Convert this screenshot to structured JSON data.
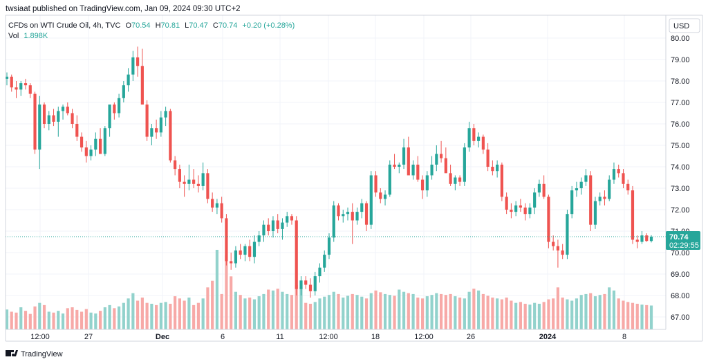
{
  "header": {
    "publisher": "twsiaat published on TradingView.com, Jan 09, 2024 09:30 UTC+2"
  },
  "legend": {
    "symbol": "CFDs on WTI Crude Oil, 4h, TVC",
    "o_label": "O",
    "o_value": "70.54",
    "h_label": "H",
    "h_value": "70.81",
    "l_label": "L",
    "l_value": "70.47",
    "c_label": "C",
    "c_value": "70.74",
    "change": "+0.20 (+0.28%)",
    "vol_label": "Vol",
    "vol_value": "1.898K"
  },
  "currency_button": "USD",
  "price_tag": {
    "price": "70.74",
    "countdown": "02:29:55"
  },
  "footer": {
    "brand": "TradingView"
  },
  "colors": {
    "up": "#26a69a",
    "down": "#ef5350",
    "up_volume": "#92d2cc",
    "down_volume": "#f7a9a7",
    "grid": "#f0f3fa",
    "axis_text": "#131722",
    "last_price_line": "#26a69a"
  },
  "chart_data": {
    "type": "candlestick",
    "symbol": "CFDs on WTI Crude Oil",
    "interval": "4h",
    "yaxis": {
      "ticks": [
        "80.00",
        "79.00",
        "78.00",
        "77.00",
        "76.00",
        "75.00",
        "74.00",
        "73.00",
        "72.00",
        "71.00",
        "70.00",
        "69.00",
        "68.00",
        "67.00"
      ],
      "range": [
        66.5,
        80.5
      ]
    },
    "xaxis": {
      "ticks": [
        "12:00",
        "27",
        "Dec",
        "6",
        "11",
        "12:00",
        "18",
        "12:00",
        "26",
        "2024",
        "8"
      ],
      "bold_ticks": [
        "Dec",
        "2024"
      ]
    },
    "last_price": 70.74,
    "grid": true,
    "ohlc_sample": [
      [
        78.1,
        78.4,
        77.8,
        78.2
      ],
      [
        78.2,
        78.3,
        77.5,
        77.7
      ],
      [
        77.7,
        78.0,
        77.2,
        77.6
      ],
      [
        77.6,
        78.0,
        77.3,
        77.9
      ],
      [
        77.9,
        78.1,
        77.6,
        77.8
      ],
      [
        77.8,
        77.9,
        77.2,
        77.4
      ],
      [
        77.4,
        77.5,
        74.6,
        74.8
      ],
      [
        74.8,
        77.3,
        73.9,
        76.9
      ],
      [
        76.9,
        77.0,
        75.8,
        76.0
      ],
      [
        76.0,
        76.6,
        75.7,
        76.4
      ],
      [
        76.4,
        76.7,
        75.9,
        76.1
      ],
      [
        76.1,
        76.8,
        75.4,
        76.6
      ],
      [
        76.6,
        76.9,
        76.2,
        76.8
      ],
      [
        76.8,
        77.0,
        76.4,
        76.5
      ],
      [
        76.5,
        76.7,
        75.8,
        76.0
      ],
      [
        76.0,
        76.4,
        75.2,
        75.4
      ],
      [
        75.4,
        75.6,
        74.7,
        74.9
      ],
      [
        74.9,
        75.2,
        74.2,
        74.5
      ],
      [
        74.5,
        75.0,
        74.3,
        74.8
      ],
      [
        74.8,
        75.6,
        74.5,
        75.3
      ],
      [
        75.3,
        75.8,
        74.8,
        74.6
      ],
      [
        74.6,
        75.9,
        74.5,
        75.8
      ],
      [
        75.8,
        76.5,
        75.4,
        76.9
      ],
      [
        76.9,
        77.0,
        76.2,
        76.5
      ],
      [
        76.5,
        77.4,
        76.3,
        77.2
      ],
      [
        77.2,
        78.0,
        77.0,
        77.8
      ],
      [
        77.8,
        78.6,
        77.5,
        78.3
      ],
      [
        78.3,
        79.4,
        78.0,
        79.1
      ],
      [
        79.1,
        79.6,
        78.2,
        78.7
      ],
      [
        78.7,
        79.5,
        76.9,
        76.9
      ],
      [
        76.9,
        77.1,
        75.2,
        75.4
      ],
      [
        75.4,
        76.0,
        75.0,
        75.8
      ],
      [
        75.8,
        76.2,
        75.3,
        75.6
      ],
      [
        75.6,
        76.6,
        75.4,
        76.3
      ],
      [
        76.3,
        76.8,
        75.9,
        76.6
      ],
      [
        76.6,
        76.7,
        74.2,
        74.3
      ],
      [
        74.3,
        74.5,
        73.6,
        73.9
      ],
      [
        73.9,
        74.1,
        73.0,
        73.3
      ],
      [
        73.3,
        73.6,
        72.6,
        73.2
      ],
      [
        73.2,
        74.1,
        72.9,
        73.4
      ],
      [
        73.4,
        73.9,
        73.0,
        73.2
      ],
      [
        73.2,
        73.6,
        72.8,
        73.1
      ],
      [
        73.1,
        74.2,
        72.9,
        73.7
      ],
      [
        73.7,
        73.9,
        72.3,
        72.5
      ],
      [
        72.5,
        72.8,
        71.9,
        72.1
      ],
      [
        72.1,
        72.5,
        71.8,
        72.3
      ],
      [
        72.3,
        72.6,
        71.4,
        71.6
      ],
      [
        71.6,
        71.8,
        69.4,
        69.6
      ],
      [
        69.6,
        70.0,
        69.2,
        69.5
      ],
      [
        69.5,
        70.3,
        69.3,
        70.1
      ],
      [
        70.1,
        70.4,
        69.7,
        69.9
      ],
      [
        69.9,
        70.4,
        69.6,
        70.3
      ],
      [
        70.3,
        70.6,
        69.6,
        69.8
      ],
      [
        69.8,
        70.8,
        69.5,
        70.5
      ],
      [
        70.5,
        71.0,
        70.3,
        70.8
      ],
      [
        70.8,
        71.5,
        70.5,
        71.3
      ],
      [
        71.3,
        71.6,
        70.8,
        71.0
      ],
      [
        71.0,
        71.7,
        70.7,
        71.5
      ],
      [
        71.5,
        71.8,
        70.9,
        71.1
      ],
      [
        71.1,
        71.6,
        70.6,
        71.4
      ],
      [
        71.4,
        71.9,
        71.2,
        71.7
      ],
      [
        71.7,
        71.8,
        71.3,
        71.5
      ],
      [
        71.5,
        71.7,
        68.0,
        68.3
      ],
      [
        68.3,
        68.9,
        68.0,
        68.7
      ],
      [
        68.7,
        68.9,
        68.3,
        68.5
      ],
      [
        68.5,
        68.8,
        67.9,
        68.2
      ],
      [
        68.2,
        69.1,
        68.0,
        68.9
      ],
      [
        68.9,
        69.5,
        68.6,
        69.3
      ],
      [
        69.3,
        70.1,
        69.1,
        69.9
      ],
      [
        69.9,
        70.9,
        69.7,
        70.7
      ],
      [
        70.7,
        72.4,
        70.5,
        72.2
      ],
      [
        72.2,
        72.3,
        71.5,
        71.7
      ],
      [
        71.7,
        72.0,
        71.4,
        71.8
      ],
      [
        71.8,
        72.1,
        71.5,
        71.9
      ],
      [
        71.9,
        72.3,
        70.4,
        71.5
      ],
      [
        71.5,
        72.1,
        71.3,
        71.9
      ],
      [
        71.9,
        72.5,
        71.6,
        72.3
      ],
      [
        72.3,
        72.4,
        71.0,
        71.3
      ],
      [
        71.3,
        73.8,
        71.1,
        73.6
      ],
      [
        73.6,
        73.8,
        72.6,
        72.8
      ],
      [
        72.8,
        73.0,
        72.3,
        72.5
      ],
      [
        72.5,
        72.9,
        72.2,
        72.7
      ],
      [
        72.7,
        74.3,
        72.6,
        74.1
      ],
      [
        74.1,
        74.6,
        73.9,
        74.0
      ],
      [
        74.0,
        74.2,
        73.7,
        74.1
      ],
      [
        74.1,
        75.3,
        73.9,
        74.9
      ],
      [
        74.9,
        75.4,
        74.3,
        73.6
      ],
      [
        73.6,
        74.3,
        73.4,
        74.1
      ],
      [
        74.1,
        74.5,
        73.3,
        73.4
      ],
      [
        73.4,
        73.6,
        72.5,
        72.9
      ],
      [
        72.9,
        73.8,
        72.6,
        73.6
      ],
      [
        73.6,
        74.5,
        73.4,
        74.1
      ],
      [
        74.1,
        75.0,
        73.8,
        74.6
      ],
      [
        74.6,
        75.2,
        74.2,
        74.4
      ],
      [
        74.4,
        74.9,
        73.9,
        73.7
      ],
      [
        73.7,
        74.1,
        73.1,
        73.2
      ],
      [
        73.2,
        73.6,
        72.9,
        73.5
      ],
      [
        73.5,
        73.6,
        73.1,
        73.3
      ],
      [
        73.3,
        75.1,
        73.1,
        74.9
      ],
      [
        74.9,
        76.1,
        74.7,
        75.8
      ],
      [
        75.8,
        76.0,
        75.0,
        75.2
      ],
      [
        75.2,
        75.6,
        74.9,
        75.4
      ],
      [
        75.4,
        75.5,
        74.6,
        74.8
      ],
      [
        74.8,
        75.1,
        73.8,
        74.0
      ],
      [
        74.0,
        74.3,
        73.6,
        73.8
      ],
      [
        73.8,
        74.3,
        73.5,
        74.1
      ],
      [
        74.1,
        74.2,
        72.4,
        72.6
      ],
      [
        72.6,
        72.8,
        71.8,
        72.0
      ],
      [
        72.0,
        72.3,
        71.6,
        71.9
      ],
      [
        71.9,
        72.4,
        71.7,
        72.2
      ],
      [
        72.2,
        72.5,
        71.9,
        72.1
      ],
      [
        72.1,
        72.3,
        71.5,
        71.8
      ],
      [
        71.8,
        72.3,
        71.6,
        72.1
      ],
      [
        72.1,
        73.0,
        71.8,
        72.8
      ],
      [
        72.8,
        73.4,
        72.6,
        73.2
      ],
      [
        73.2,
        73.6,
        72.5,
        72.6
      ],
      [
        72.6,
        72.7,
        70.2,
        70.5
      ],
      [
        70.5,
        70.8,
        70.1,
        70.3
      ],
      [
        70.3,
        70.6,
        69.3,
        70.1
      ],
      [
        70.1,
        70.4,
        69.7,
        69.9
      ],
      [
        69.9,
        72.0,
        69.7,
        71.8
      ],
      [
        71.8,
        73.1,
        71.6,
        72.9
      ],
      [
        72.9,
        73.3,
        72.6,
        73.0
      ],
      [
        73.0,
        73.5,
        72.7,
        73.3
      ],
      [
        73.3,
        73.9,
        73.1,
        73.6
      ],
      [
        73.6,
        73.8,
        71.0,
        71.3
      ],
      [
        71.3,
        72.6,
        71.1,
        72.4
      ],
      [
        72.4,
        72.8,
        72.2,
        72.6
      ],
      [
        72.6,
        72.9,
        72.2,
        72.5
      ],
      [
        72.5,
        73.6,
        72.4,
        73.4
      ],
      [
        73.4,
        74.2,
        73.2,
        73.9
      ],
      [
        73.9,
        74.1,
        73.5,
        73.7
      ],
      [
        73.7,
        73.9,
        73.0,
        73.2
      ],
      [
        73.2,
        73.4,
        72.7,
        72.9
      ],
      [
        72.9,
        73.1,
        70.4,
        70.6
      ],
      [
        70.6,
        70.8,
        70.2,
        70.5
      ],
      [
        70.5,
        71.0,
        70.4,
        70.8
      ],
      [
        70.8,
        70.9,
        70.5,
        70.54
      ],
      [
        70.54,
        70.81,
        70.47,
        70.74
      ]
    ],
    "volume_sample": [
      45,
      40,
      38,
      50,
      42,
      35,
      52,
      60,
      55,
      40,
      38,
      42,
      36,
      48,
      50,
      44,
      40,
      46,
      38,
      36,
      42,
      50,
      55,
      48,
      52,
      60,
      70,
      82,
      65,
      72,
      60,
      58,
      55,
      60,
      62,
      58,
      75,
      70,
      65,
      72,
      55,
      60,
      70,
      95,
      110,
      180,
      80,
      168,
      120,
      85,
      78,
      70,
      72,
      68,
      75,
      80,
      90,
      88,
      92,
      85,
      80,
      78,
      100,
      95,
      60,
      58,
      62,
      70,
      74,
      78,
      85,
      80,
      72,
      76,
      80,
      78,
      74,
      70,
      82,
      88,
      84,
      80,
      78,
      76,
      90,
      85,
      82,
      80,
      72,
      70,
      75,
      78,
      82,
      80,
      78,
      80,
      75,
      72,
      70,
      85,
      92,
      88,
      80,
      76,
      72,
      70,
      68,
      72,
      65,
      60,
      62,
      58,
      56,
      60,
      58,
      62,
      68,
      70,
      95,
      72,
      68,
      65,
      70,
      78,
      80,
      82,
      75,
      78,
      80,
      95,
      88,
      70,
      65,
      62,
      60,
      58,
      56,
      55,
      54
    ]
  }
}
